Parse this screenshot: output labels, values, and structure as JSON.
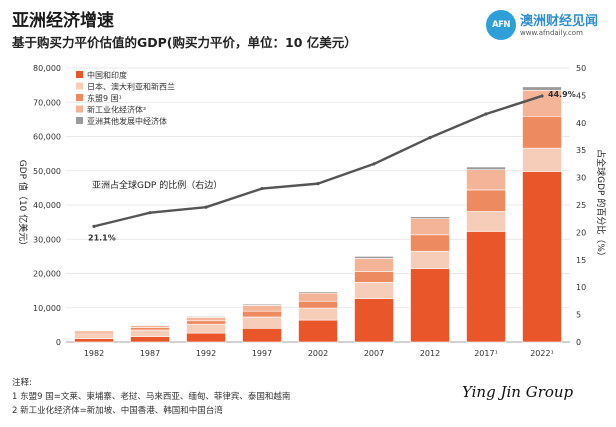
{
  "header": {
    "title": "亚洲经济增速",
    "subtitle": "基于购买力平价估值的GDP(购买力平价，单位：10 亿美元）"
  },
  "logo": {
    "mark": "AFN",
    "name": "澳洲财经见闻",
    "url": "www.afndaily.com"
  },
  "notes": {
    "heading": "注释:",
    "line1": "1 东盟9 国=文莱、柬埔寨、老挝、马来西亚、缅甸、菲律宾、泰国和越南",
    "line2": "2 新工业化经济体=新加坡、中国香港、韩国和中国台湾"
  },
  "signature": "Ying Jin Group",
  "colors": {
    "china_india": "#e8562a",
    "japan_aus_nz": "#f6cdb9",
    "asean9": "#ee8a60",
    "nie": "#f4b498",
    "other": "#9b9b9b",
    "line": "#555555",
    "grid": "#e2e2e2"
  },
  "chart_data": {
    "type": "bar",
    "stacked": true,
    "categories": [
      "1982",
      "1987",
      "1992",
      "1997",
      "2002",
      "2007",
      "2012",
      "2017¹",
      "2022¹"
    ],
    "ylabel": "GDP 值（10 亿美元）",
    "ylim": [
      0,
      80000
    ],
    "yticks": [
      "0",
      "10,000",
      "20,000",
      "30,000",
      "40,000",
      "50,000",
      "60,000",
      "70,000",
      "80,000"
    ],
    "y2label": "占全球GDP 的百分比（%）",
    "y2lim": [
      0,
      50
    ],
    "y2ticks": [
      "0",
      "5",
      "10",
      "15",
      "20",
      "25",
      "30",
      "35",
      "40",
      "45",
      "50"
    ],
    "series": [
      {
        "name": "中国和印度",
        "color": "#e8562a",
        "values": [
          1000,
          1600,
          2600,
          4000,
          6400,
          12700,
          21400,
          32300,
          49800
        ]
      },
      {
        "name": "日本、澳大利亚和新西兰",
        "color": "#f6cdb9",
        "values": [
          1400,
          1900,
          2600,
          3300,
          3500,
          4700,
          5100,
          5800,
          6800
        ]
      },
      {
        "name": "东盟9 国¹",
        "color": "#ee8a60",
        "values": [
          500,
          700,
          1000,
          1700,
          2000,
          3200,
          4800,
          6300,
          9300
        ]
      },
      {
        "name": "新工业化经济体²",
        "color": "#f4b498",
        "values": [
          400,
          600,
          1000,
          1700,
          2400,
          3800,
          4700,
          5900,
          7600
        ]
      },
      {
        "name": "亚洲其他发展中经济体",
        "color": "#9b9b9b",
        "values": [
          100,
          200,
          250,
          350,
          400,
          600,
          600,
          800,
          1000
        ]
      }
    ],
    "line_series": {
      "name": "亚洲占全球GDP 的比例（右边）",
      "axis": "right",
      "values": [
        21.1,
        23.6,
        24.6,
        28.0,
        28.9,
        32.5,
        37.3,
        41.6,
        44.9
      ],
      "labels": {
        "first": "21.1%",
        "last": "44.9%"
      }
    },
    "legend_position": "top-left",
    "grid": true
  }
}
